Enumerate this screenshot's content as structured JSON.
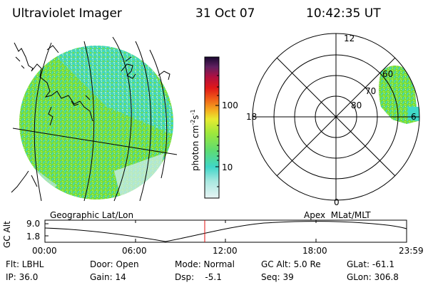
{
  "header": {
    "title": "Ultraviolet Imager",
    "date": "31 Oct 07",
    "time": "10:42:35 UT"
  },
  "colorbar": {
    "unit_label": "photon cm",
    "unit_exp1": "-2",
    "unit_mid": "s",
    "unit_exp2": "-1",
    "tick_100": "100",
    "tick_10": "10"
  },
  "left_panel": {
    "label": "Geographic Lat/Lon"
  },
  "polar_panel": {
    "label": "Apex  MLat/MLT",
    "mlt_12": "12",
    "mlt_18": "18",
    "mlt_6": "6",
    "mlt_0": "0",
    "lat_60": "60",
    "lat_70": "70",
    "lat_80": "80"
  },
  "altitude_plot": {
    "ylabel": "GC Alt",
    "ytick_high": "9.0",
    "ytick_low": "1.8",
    "xticks": [
      "00:00",
      "06:00",
      "12:00",
      "18:00",
      "23:59"
    ]
  },
  "status": {
    "flt": "Flt: LBHL",
    "ip": "IP: 36.0",
    "door": "Door: Open",
    "gain": "Gain: 14",
    "mode": "Mode: Normal",
    "dsp": "Dsp:    -5.1",
    "gc_alt": "GC Alt: 5.0 Re",
    "seq": "Seq: 39",
    "glat": "GLat: -61.1",
    "glon": "GLon: 306.8"
  },
  "colors": {
    "aurora_green": "#7fe23a",
    "aurora_cyan": "#3fd9c8",
    "aurora_pale": "#c8ece6",
    "marker_red": "#e01010"
  }
}
